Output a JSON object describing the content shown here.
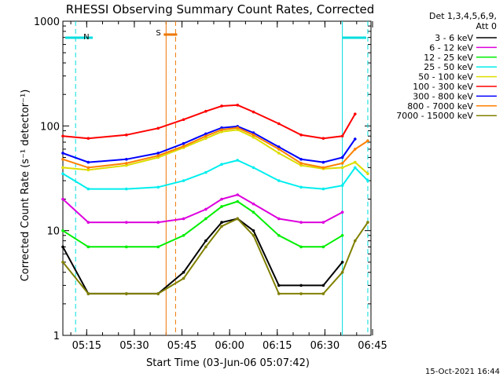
{
  "chart_data": {
    "type": "line",
    "title": "RHESSI Observing Summary Count Rates, Corrected",
    "xlabel": "Start Time (03-Jun-06 05:07:42)",
    "ylabel": "Corrected Count Rate (s⁻¹ detector⁻¹)",
    "y_scale": "log",
    "ylim": [
      1,
      1000
    ],
    "y_ticks": [
      {
        "value": 1,
        "label": "1"
      },
      {
        "value": 10,
        "label": "10"
      },
      {
        "value": 100,
        "label": "100"
      },
      {
        "value": 1000,
        "label": "1000"
      }
    ],
    "xlim_minutes": [
      0,
      97
    ],
    "x_ticks": [
      {
        "minute": 7.5,
        "label": "05:15"
      },
      {
        "minute": 22.5,
        "label": "05:30"
      },
      {
        "minute": 37.5,
        "label": "05:45"
      },
      {
        "minute": 52.5,
        "label": "06:00"
      },
      {
        "minute": 67.5,
        "label": "06:15"
      },
      {
        "minute": 82.5,
        "label": "06:30"
      },
      {
        "minute": 97.5,
        "label": "06:45"
      }
    ],
    "legend": {
      "header": "Det 1,3,4,5,6,9,",
      "att": "Att 0",
      "placement": "outside-right"
    },
    "annotations": {
      "n_label": "N",
      "s_label": "S",
      "footer": "15-Oct-2021 16:44"
    },
    "night_markers_minutes": [
      4,
      88
    ],
    "saa_markers_minutes": [
      32.5,
      34
    ],
    "x_minutes": [
      0,
      8,
      20,
      30,
      38,
      45,
      50,
      55,
      60,
      68,
      75,
      82,
      88,
      92,
      96
    ],
    "series": [
      {
        "name": "3 - 6 keV",
        "color": "#000000",
        "values": [
          7,
          2.5,
          2.5,
          2.5,
          4,
          8,
          12,
          13,
          10,
          3,
          3,
          3,
          5,
          null,
          null
        ]
      },
      {
        "name": "6 - 12 keV",
        "color": "#dd00dd",
        "values": [
          20,
          12,
          12,
          12,
          13,
          16,
          20,
          22,
          18,
          13,
          12,
          12,
          15,
          null,
          null
        ]
      },
      {
        "name": "12 - 25 keV",
        "color": "#00ee00",
        "values": [
          10,
          7,
          7,
          7,
          9,
          13,
          17,
          19,
          15,
          9,
          7,
          7,
          9,
          null,
          null
        ]
      },
      {
        "name": "25 - 50 keV",
        "color": "#00eeee",
        "values": [
          35,
          25,
          25,
          26,
          30,
          36,
          43,
          47,
          40,
          30,
          26,
          25,
          27,
          40,
          30
        ]
      },
      {
        "name": "50 - 100 keV",
        "color": "#dddd00",
        "values": [
          40,
          38,
          42,
          50,
          62,
          76,
          88,
          92,
          78,
          55,
          42,
          39,
          40,
          45,
          35
        ]
      },
      {
        "name": "100 - 300 keV",
        "color": "#ff0000",
        "values": [
          80,
          76,
          82,
          95,
          115,
          138,
          155,
          158,
          136,
          105,
          82,
          76,
          80,
          130,
          null
        ]
      },
      {
        "name": "300 - 800 keV",
        "color": "#0000ff",
        "values": [
          55,
          45,
          48,
          55,
          68,
          84,
          96,
          99,
          86,
          63,
          48,
          45,
          50,
          75,
          null
        ]
      },
      {
        "name": "800 - 7000 keV",
        "color": "#ff8000",
        "values": [
          48,
          40,
          44,
          52,
          64,
          80,
          92,
          96,
          82,
          60,
          44,
          40,
          44,
          60,
          72
        ]
      },
      {
        "name": "7000 - 15000 keV",
        "color": "#808000",
        "values": [
          5,
          2.5,
          2.5,
          2.5,
          3.5,
          7,
          11,
          13,
          9,
          2.5,
          2.5,
          2.5,
          4,
          8,
          12
        ]
      }
    ]
  }
}
